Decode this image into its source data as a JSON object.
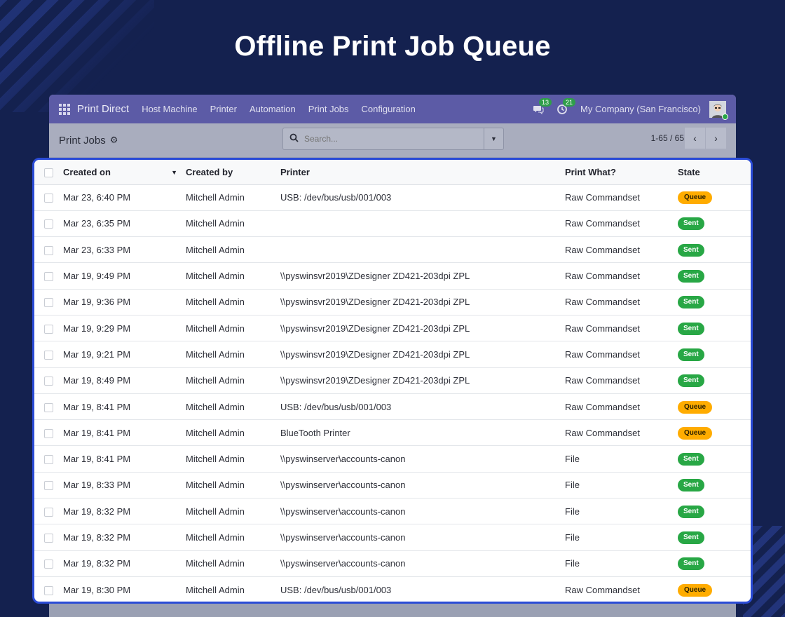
{
  "hero": {
    "title": "Offline Print Job Queue"
  },
  "navbar": {
    "brand": "Print Direct",
    "menu": [
      "Host Machine",
      "Printer",
      "Automation",
      "Print Jobs",
      "Configuration"
    ],
    "messages_count": "13",
    "activities_count": "21",
    "company": "My Company (San Francisco)"
  },
  "control_panel": {
    "title": "Print Jobs",
    "search_placeholder": "Search...",
    "pager": "1-65 / 65"
  },
  "table": {
    "columns": [
      "Created on",
      "Created by",
      "Printer",
      "Print What?",
      "State"
    ],
    "rows": [
      {
        "created_on": "Mar 23, 6:40 PM",
        "created_by": "Mitchell Admin",
        "printer": "USB: /dev/bus/usb/001/003",
        "print_what": "Raw Commandset",
        "state": "Queue"
      },
      {
        "created_on": "Mar 23, 6:35 PM",
        "created_by": "Mitchell Admin",
        "printer": "",
        "print_what": "Raw Commandset",
        "state": "Sent"
      },
      {
        "created_on": "Mar 23, 6:33 PM",
        "created_by": "Mitchell Admin",
        "printer": "",
        "print_what": "Raw Commandset",
        "state": "Sent"
      },
      {
        "created_on": "Mar 19, 9:49 PM",
        "created_by": "Mitchell Admin",
        "printer": "\\\\pyswinsvr2019\\ZDesigner ZD421-203dpi ZPL",
        "print_what": "Raw Commandset",
        "state": "Sent"
      },
      {
        "created_on": "Mar 19, 9:36 PM",
        "created_by": "Mitchell Admin",
        "printer": "\\\\pyswinsvr2019\\ZDesigner ZD421-203dpi ZPL",
        "print_what": "Raw Commandset",
        "state": "Sent"
      },
      {
        "created_on": "Mar 19, 9:29 PM",
        "created_by": "Mitchell Admin",
        "printer": "\\\\pyswinsvr2019\\ZDesigner ZD421-203dpi ZPL",
        "print_what": "Raw Commandset",
        "state": "Sent"
      },
      {
        "created_on": "Mar 19, 9:21 PM",
        "created_by": "Mitchell Admin",
        "printer": "\\\\pyswinsvr2019\\ZDesigner ZD421-203dpi ZPL",
        "print_what": "Raw Commandset",
        "state": "Sent"
      },
      {
        "created_on": "Mar 19, 8:49 PM",
        "created_by": "Mitchell Admin",
        "printer": "\\\\pyswinsvr2019\\ZDesigner ZD421-203dpi ZPL",
        "print_what": "Raw Commandset",
        "state": "Sent"
      },
      {
        "created_on": "Mar 19, 8:41 PM",
        "created_by": "Mitchell Admin",
        "printer": "USB: /dev/bus/usb/001/003",
        "print_what": "Raw Commandset",
        "state": "Queue"
      },
      {
        "created_on": "Mar 19, 8:41 PM",
        "created_by": "Mitchell Admin",
        "printer": "BlueTooth Printer",
        "print_what": "Raw Commandset",
        "state": "Queue"
      },
      {
        "created_on": "Mar 19, 8:41 PM",
        "created_by": "Mitchell Admin",
        "printer": "\\\\pyswinserver\\accounts-canon",
        "print_what": "File",
        "state": "Sent"
      },
      {
        "created_on": "Mar 19, 8:33 PM",
        "created_by": "Mitchell Admin",
        "printer": "\\\\pyswinserver\\accounts-canon",
        "print_what": "File",
        "state": "Sent"
      },
      {
        "created_on": "Mar 19, 8:32 PM",
        "created_by": "Mitchell Admin",
        "printer": "\\\\pyswinserver\\accounts-canon",
        "print_what": "File",
        "state": "Sent"
      },
      {
        "created_on": "Mar 19, 8:32 PM",
        "created_by": "Mitchell Admin",
        "printer": "\\\\pyswinserver\\accounts-canon",
        "print_what": "File",
        "state": "Sent"
      },
      {
        "created_on": "Mar 19, 8:32 PM",
        "created_by": "Mitchell Admin",
        "printer": "\\\\pyswinserver\\accounts-canon",
        "print_what": "File",
        "state": "Sent"
      },
      {
        "created_on": "Mar 19, 8:30 PM",
        "created_by": "Mitchell Admin",
        "printer": "USB: /dev/bus/usb/001/003",
        "print_what": "Raw Commandset",
        "state": "Queue"
      }
    ]
  },
  "colors": {
    "background": "#14214f",
    "navbar": "#5c5ba6",
    "highlight_border": "#2a4bd6",
    "sent": "#28a745",
    "queue": "#ffac00"
  }
}
